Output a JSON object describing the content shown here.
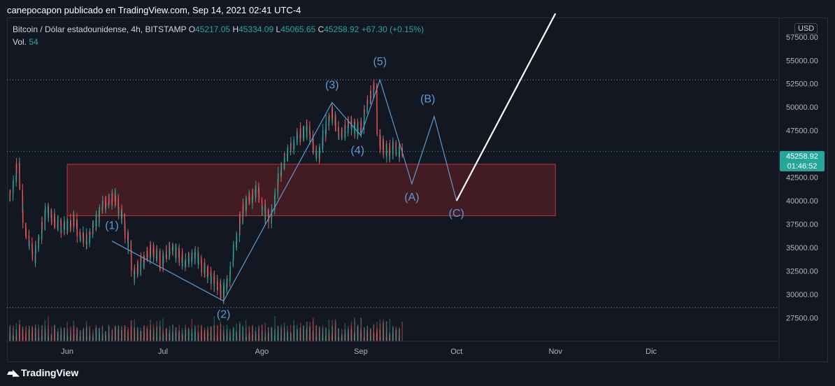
{
  "header": {
    "publisher": "canepocapon publicado en TradingView.com, Sep 14, 2021 02:41 UTC-4"
  },
  "legend": {
    "symbol": "Bitcoin / Dólar estadounidense, 4h, BITSTAMP",
    "open_label": "O",
    "open": "45217.05",
    "high_label": "H",
    "high": "45334.09",
    "low_label": "L",
    "low": "45065.65",
    "close_label": "C",
    "close": "45258.92",
    "change": "+67.30 (+0.15%)",
    "vol_label": "Vol.",
    "vol": "54"
  },
  "price_axis": {
    "currency": "USD",
    "current_price": "45258.92",
    "countdown": "01:46:52"
  },
  "brand": {
    "name": "TradingView",
    "logo": "tradingview-logo-icon"
  },
  "colors": {
    "background": "#131722",
    "up": "#26a69a",
    "down": "#ef5350",
    "wave_line": "#5b9bd5",
    "wave_label": "#5b9bd5",
    "zone_fill": "#6b1f24",
    "zone_border": "#b23a3a",
    "projection": "#ffffff"
  },
  "chart_data": {
    "type": "candlestick",
    "timeframe": "4h",
    "y_ticks": [
      27500,
      30000,
      32500,
      35000,
      37500,
      40000,
      42500,
      45000,
      47500,
      50000,
      52500,
      55000,
      57500
    ],
    "y_tick_labels": [
      "27500.00",
      "30000.00",
      "32500.00",
      "35000.00",
      "37500.00",
      "40000.00",
      "42500.00",
      "45000.00",
      "47500.00",
      "50000.00",
      "52500.00",
      "55000.00",
      "57500.00"
    ],
    "ylim": [
      25000,
      59500
    ],
    "x_ticks": [
      {
        "label": "Jun",
        "date": "2021-06-01"
      },
      {
        "label": "Jul",
        "date": "2021-07-01"
      },
      {
        "label": "Ago",
        "date": "2021-08-01"
      },
      {
        "label": "Sep",
        "date": "2021-09-01"
      },
      {
        "label": "Oct",
        "date": "2021-10-01"
      },
      {
        "label": "Nov",
        "date": "2021-11-01"
      },
      {
        "label": "Dic",
        "date": "2021-12-01"
      }
    ],
    "xlim": [
      "2021-05-14",
      "2021-12-31"
    ],
    "price_path": [
      [
        "2021-05-14",
        40000
      ],
      [
        "2021-05-17",
        44000
      ],
      [
        "2021-05-19",
        37000
      ],
      [
        "2021-05-22",
        34000
      ],
      [
        "2021-05-26",
        39000
      ],
      [
        "2021-05-31",
        37000
      ],
      [
        "2021-06-03",
        38000
      ],
      [
        "2021-06-07",
        35500
      ],
      [
        "2021-06-10",
        37500
      ],
      [
        "2021-06-13",
        39500
      ],
      [
        "2021-06-16",
        40500
      ],
      [
        "2021-06-18",
        39000
      ],
      [
        "2021-06-21",
        35000
      ],
      [
        "2021-06-22",
        32000
      ],
      [
        "2021-06-25",
        33500
      ],
      [
        "2021-06-28",
        34800
      ],
      [
        "2021-07-01",
        33500
      ],
      [
        "2021-07-04",
        35000
      ],
      [
        "2021-07-08",
        33500
      ],
      [
        "2021-07-12",
        34000
      ],
      [
        "2021-07-16",
        31800
      ],
      [
        "2021-07-19",
        31000
      ],
      [
        "2021-07-20",
        29800
      ],
      [
        "2021-07-22",
        32000
      ],
      [
        "2021-07-26",
        38500
      ],
      [
        "2021-07-28",
        40000
      ],
      [
        "2021-07-31",
        41000
      ],
      [
        "2021-08-02",
        39000
      ],
      [
        "2021-08-04",
        38000
      ],
      [
        "2021-08-07",
        43000
      ],
      [
        "2021-08-10",
        45500
      ],
      [
        "2021-08-13",
        47000
      ],
      [
        "2021-08-16",
        47500
      ],
      [
        "2021-08-19",
        44500
      ],
      [
        "2021-08-23",
        49800
      ],
      [
        "2021-08-26",
        46800
      ],
      [
        "2021-08-29",
        48500
      ],
      [
        "2021-09-01",
        47000
      ],
      [
        "2021-09-03",
        50000
      ],
      [
        "2021-09-06",
        52200
      ],
      [
        "2021-09-07",
        46500
      ],
      [
        "2021-09-08",
        46000
      ],
      [
        "2021-09-10",
        45000
      ],
      [
        "2021-09-12",
        45800
      ],
      [
        "2021-09-14",
        45258.92
      ]
    ],
    "volume_max_label_price": 27500,
    "current_price": 45258.92,
    "reference_lines": [
      {
        "price": 52920,
        "style": "dotted"
      },
      {
        "price": 45258.92,
        "style": "dotted"
      },
      {
        "price": 28600,
        "style": "dotted"
      }
    ],
    "zone": {
      "x_start": "2021-06-01",
      "x_end": "2021-11-01",
      "y_top": 43900,
      "y_bottom": 38400
    },
    "waves": {
      "points": [
        {
          "date": "2021-06-15",
          "price": 35700
        },
        {
          "date": "2021-07-20",
          "price": 29300
        },
        {
          "date": "2021-08-23",
          "price": 50500
        },
        {
          "date": "2021-09-01",
          "price": 47000
        },
        {
          "date": "2021-09-07",
          "price": 52900
        },
        {
          "date": "2021-09-14",
          "price": 45200
        },
        {
          "date": "2021-09-17",
          "price": 41800
        },
        {
          "date": "2021-09-24",
          "price": 49000
        },
        {
          "date": "2021-10-01",
          "price": 40000
        }
      ],
      "labels": [
        {
          "text": "(1)",
          "date": "2021-06-15",
          "price": 37000
        },
        {
          "text": "(2)",
          "date": "2021-07-20",
          "price": 27500
        },
        {
          "text": "(3)",
          "date": "2021-08-23",
          "price": 52000
        },
        {
          "text": "(4)",
          "date": "2021-08-31",
          "price": 45000
        },
        {
          "text": "(5)",
          "date": "2021-09-07",
          "price": 54500
        },
        {
          "text": "(A)",
          "date": "2021-09-17",
          "price": 40000
        },
        {
          "text": "(B)",
          "date": "2021-09-22",
          "price": 50500
        },
        {
          "text": "(C)",
          "date": "2021-10-01",
          "price": 38300
        }
      ]
    },
    "projection": {
      "start": {
        "date": "2021-10-01",
        "price": 40000
      },
      "end": {
        "date": "2021-11-01",
        "price": 60000
      }
    }
  }
}
